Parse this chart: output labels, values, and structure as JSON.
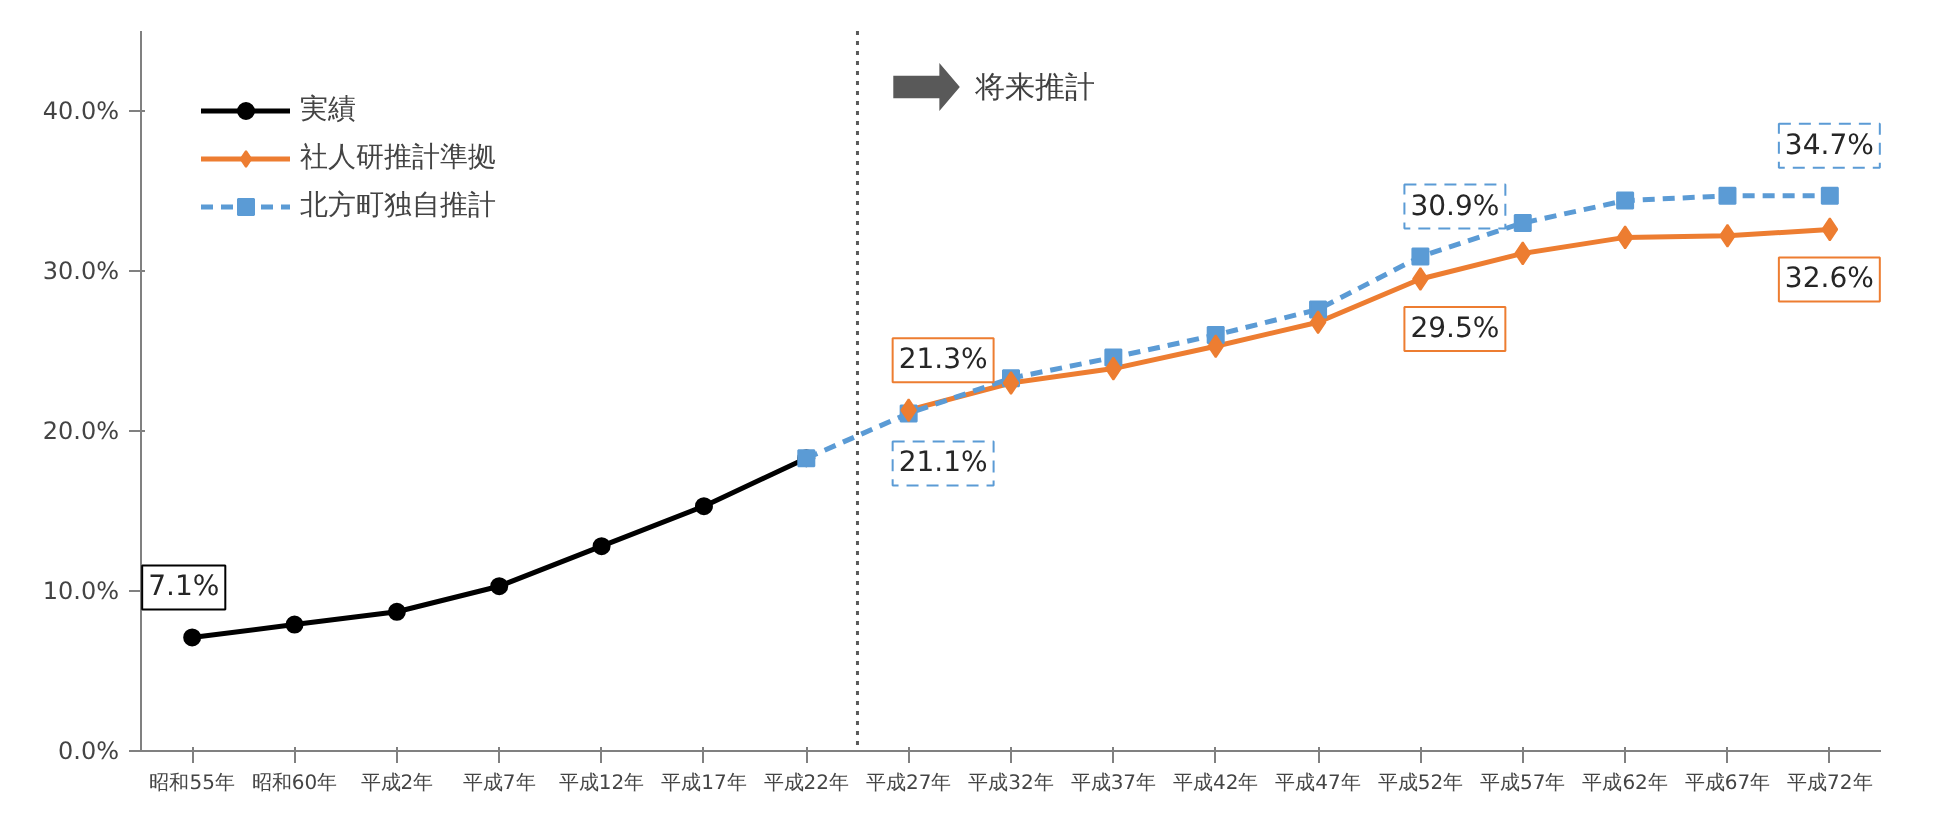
{
  "chart_data": {
    "type": "line",
    "categories": [
      "昭和55年",
      "昭和60年",
      "平成2年",
      "平成7年",
      "平成12年",
      "平成17年",
      "平成22年",
      "平成27年",
      "平成32年",
      "平成37年",
      "平成42年",
      "平成47年",
      "平成52年",
      "平成57年",
      "平成62年",
      "平成67年",
      "平成72年"
    ],
    "series": [
      {
        "name": "実績",
        "color": "#000000",
        "marker": "circle",
        "line_style": "solid",
        "values": [
          7.1,
          7.9,
          8.7,
          10.3,
          12.8,
          15.3,
          18.3,
          null,
          null,
          null,
          null,
          null,
          null,
          null,
          null,
          null,
          null
        ],
        "value_labels": [
          "7.1%",
          null,
          null,
          null,
          null,
          null,
          null,
          null,
          null,
          null,
          null,
          null,
          null,
          null,
          null,
          null,
          null
        ]
      },
      {
        "name": "社人研推計準拠",
        "color": "#ed7d31",
        "marker": "diamond",
        "line_style": "solid",
        "values": [
          null,
          null,
          null,
          null,
          null,
          null,
          null,
          21.3,
          23.0,
          23.9,
          25.3,
          26.8,
          29.5,
          31.1,
          32.1,
          32.2,
          32.6
        ],
        "value_labels": [
          null,
          null,
          null,
          null,
          null,
          null,
          null,
          "21.3%",
          null,
          null,
          null,
          null,
          "29.5%",
          null,
          null,
          null,
          "32.6%"
        ]
      },
      {
        "name": "北方町独自推計",
        "color": "#5b9bd5",
        "marker": "square",
        "line_style": "dashed",
        "values": [
          null,
          null,
          null,
          null,
          null,
          null,
          18.3,
          21.1,
          23.3,
          24.6,
          26.0,
          27.6,
          30.9,
          33.0,
          34.4,
          34.7,
          34.7
        ],
        "value_labels": [
          null,
          null,
          null,
          null,
          null,
          null,
          null,
          "21.1%",
          null,
          null,
          null,
          null,
          "30.9%",
          null,
          null,
          null,
          "34.7%"
        ]
      }
    ],
    "ylim": [
      0,
      45
    ],
    "yticks": [
      {
        "value": 0,
        "label": "0.0%"
      },
      {
        "value": 10,
        "label": "10.0%"
      },
      {
        "value": 20,
        "label": "20.0%"
      },
      {
        "value": 30,
        "label": "30.0%"
      },
      {
        "value": 40,
        "label": "40.0%"
      }
    ],
    "annotations": [
      "将来推計"
    ],
    "grid": false,
    "legend": "top left"
  }
}
